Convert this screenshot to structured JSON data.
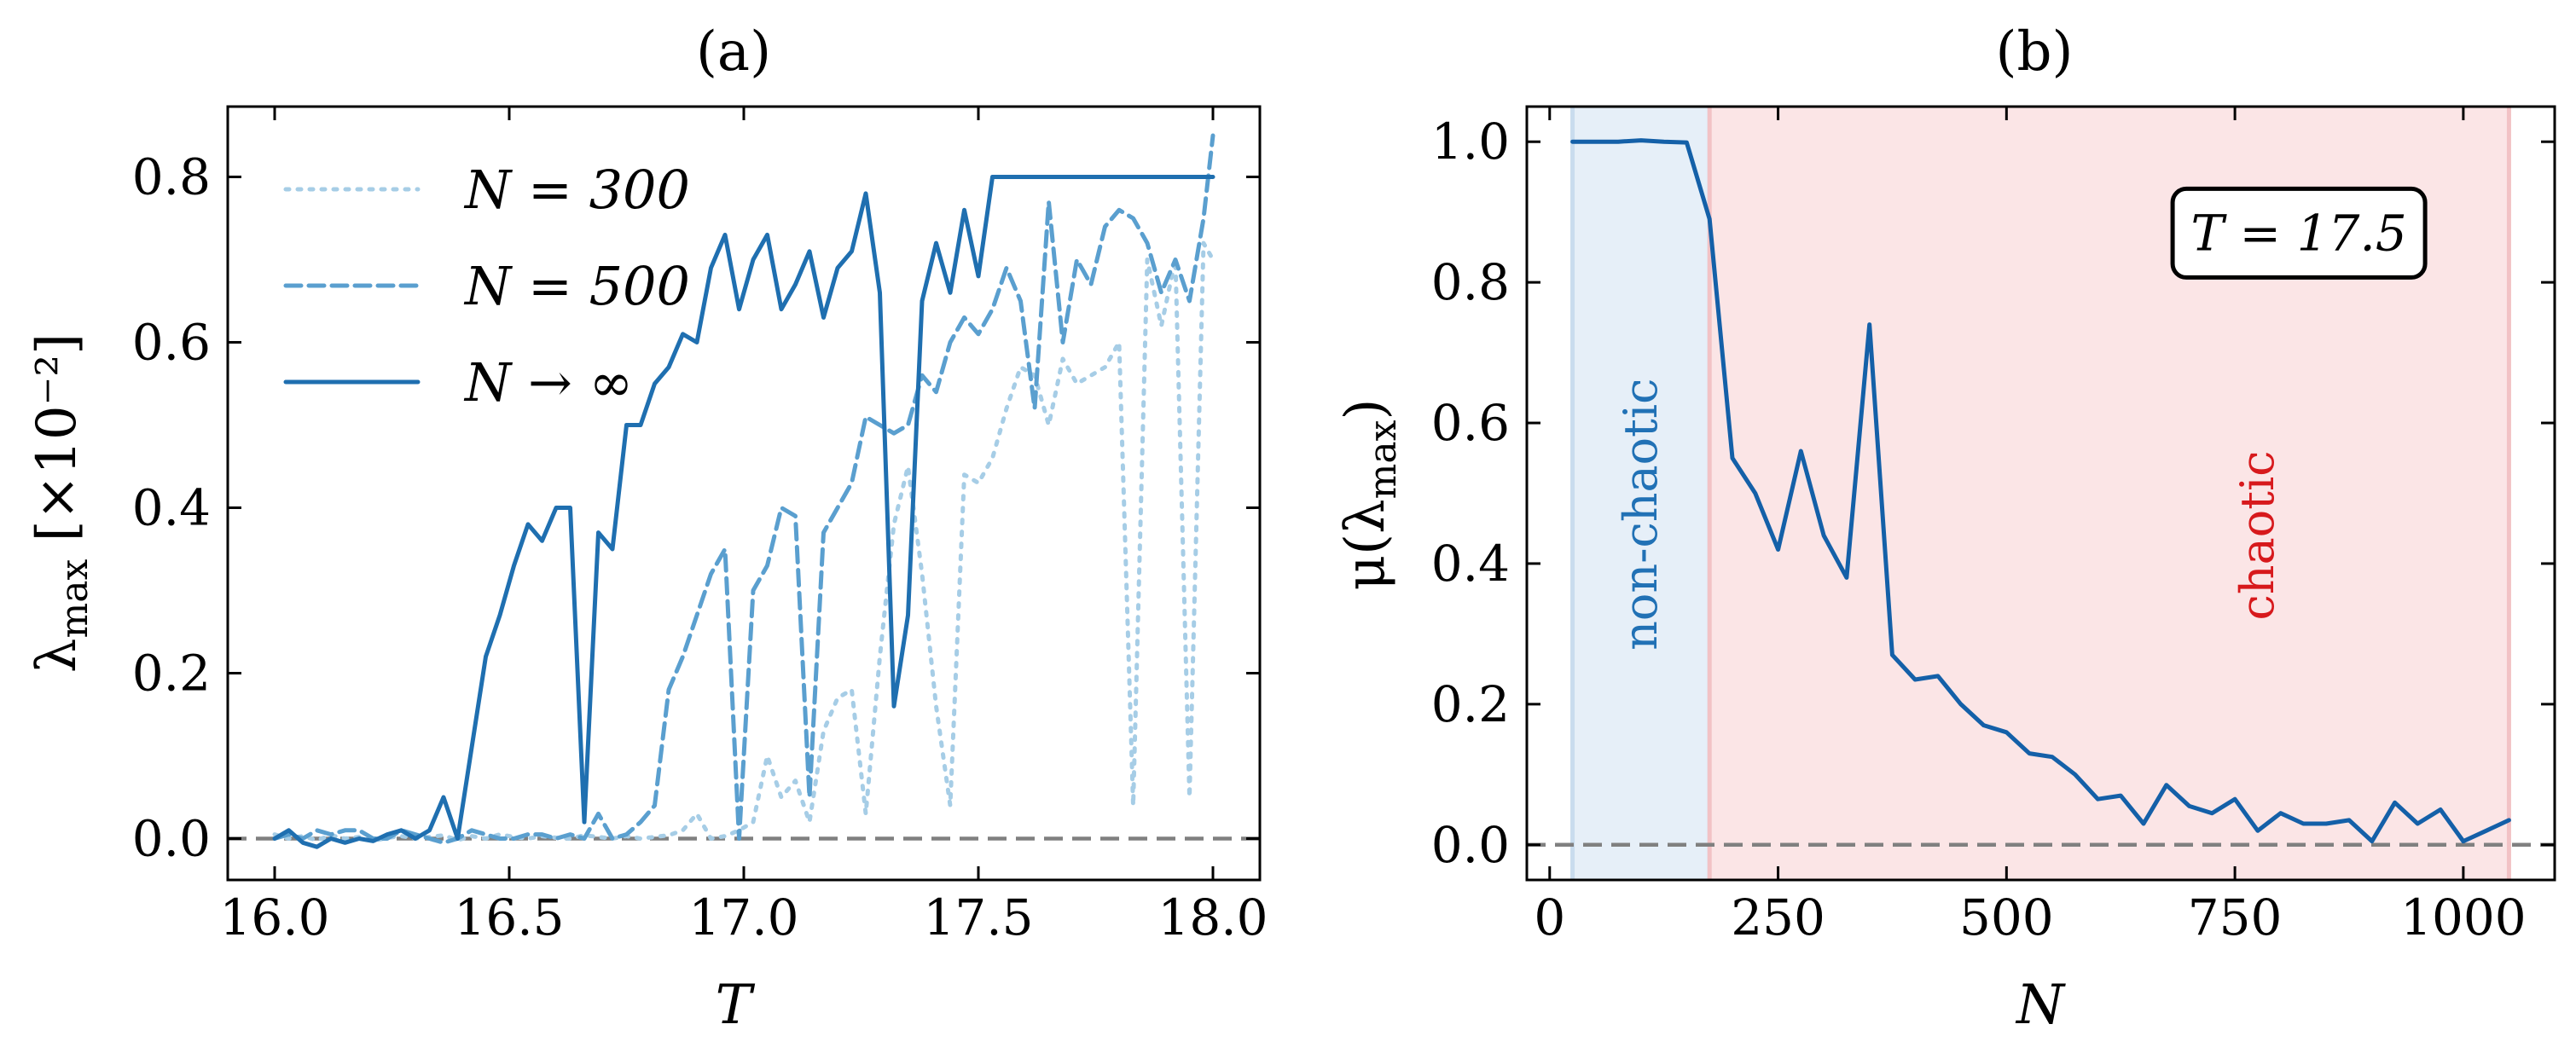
{
  "chart_data": [
    {
      "panel": "(a)",
      "type": "line",
      "xlabel": "T",
      "ylabel_main": "λ",
      "ylabel_sub": "max",
      "ylabel_unit": "[×10⁻²]",
      "xlim": [
        15.9,
        18.1
      ],
      "ylim": [
        -0.05,
        0.885
      ],
      "xticks": [
        16.0,
        16.5,
        17.0,
        17.5,
        18.0
      ],
      "xtick_labels": [
        "16.0",
        "16.5",
        "17.0",
        "17.5",
        "18.0"
      ],
      "yticks": [
        0.0,
        0.2,
        0.4,
        0.6,
        0.8
      ],
      "ytick_labels": [
        "0.0",
        "0.2",
        "0.4",
        "0.6",
        "0.8"
      ],
      "reference_line_y": 0.0,
      "legend_position": "top-left",
      "legend": [
        "N = 300",
        "N = 500",
        "N → ∞"
      ],
      "series": [
        {
          "name": "N = 300",
          "style": "dotted",
          "color": "#a6cde6",
          "x": [
            16.0,
            16.03,
            16.06,
            16.09,
            16.12,
            16.15,
            16.18,
            16.21,
            16.24,
            16.27,
            16.3,
            16.33,
            16.36,
            16.39,
            16.42,
            16.45,
            16.48,
            16.51,
            16.54,
            16.57,
            16.6,
            16.63,
            16.66,
            16.69,
            16.72,
            16.75,
            16.78,
            16.81,
            16.84,
            16.87,
            16.9,
            16.93,
            16.96,
            16.99,
            17.02,
            17.05,
            17.08,
            17.11,
            17.14,
            17.17,
            17.2,
            17.23,
            17.26,
            17.29,
            17.32,
            17.35,
            17.38,
            17.41,
            17.44,
            17.47,
            17.5,
            17.53,
            17.56,
            17.59,
            17.62,
            17.65,
            17.68,
            17.71,
            17.74,
            17.77,
            17.8,
            17.83,
            17.86,
            17.89,
            17.92,
            17.95,
            17.98,
            18.0
          ],
          "y": [
            0.005,
            0.0,
            0.003,
            -0.002,
            0.004,
            0.0,
            0.002,
            -0.003,
            0.001,
            0.003,
            0.0,
            0.002,
            0.004,
            -0.002,
            0.003,
            0.0,
            0.005,
            0.002,
            0.0,
            0.003,
            0.001,
            0.0,
            0.004,
            0.002,
            0.0,
            0.003,
            0.0,
            0.002,
            0.004,
            0.01,
            0.03,
            0.0,
            0.003,
            0.01,
            0.02,
            0.1,
            0.05,
            0.07,
            0.02,
            0.13,
            0.17,
            0.18,
            0.03,
            0.22,
            0.38,
            0.45,
            0.32,
            0.16,
            0.04,
            0.44,
            0.43,
            0.46,
            0.52,
            0.57,
            0.56,
            0.5,
            0.58,
            0.55,
            0.56,
            0.57,
            0.6,
            0.04,
            0.7,
            0.62,
            0.7,
            0.05,
            0.72,
            0.7
          ]
        },
        {
          "name": "N = 500",
          "style": "dashed",
          "color": "#5a9fcf",
          "x": [
            16.0,
            16.03,
            16.06,
            16.09,
            16.12,
            16.15,
            16.18,
            16.21,
            16.24,
            16.27,
            16.3,
            16.33,
            16.36,
            16.39,
            16.42,
            16.45,
            16.48,
            16.51,
            16.54,
            16.57,
            16.6,
            16.63,
            16.66,
            16.69,
            16.72,
            16.75,
            16.78,
            16.81,
            16.84,
            16.87,
            16.9,
            16.93,
            16.96,
            16.99,
            17.02,
            17.05,
            17.08,
            17.11,
            17.14,
            17.17,
            17.2,
            17.23,
            17.26,
            17.29,
            17.32,
            17.35,
            17.38,
            17.41,
            17.44,
            17.47,
            17.5,
            17.53,
            17.56,
            17.59,
            17.62,
            17.65,
            17.68,
            17.71,
            17.74,
            17.77,
            17.8,
            17.83,
            17.86,
            17.89,
            17.92,
            17.95,
            17.98,
            18.0
          ],
          "y": [
            0.0,
            0.005,
            0.0,
            0.01,
            0.005,
            0.01,
            0.01,
            0.0,
            0.0,
            0.01,
            0.005,
            0.0,
            -0.005,
            0.0,
            0.01,
            0.005,
            0.0,
            0.0,
            0.005,
            0.005,
            0.0,
            0.005,
            0.0,
            0.03,
            0.0,
            0.005,
            0.02,
            0.04,
            0.18,
            0.22,
            0.27,
            0.32,
            0.35,
            0.0,
            0.3,
            0.33,
            0.4,
            0.39,
            0.05,
            0.37,
            0.4,
            0.43,
            0.51,
            0.5,
            0.49,
            0.5,
            0.56,
            0.54,
            0.6,
            0.63,
            0.61,
            0.64,
            0.69,
            0.65,
            0.52,
            0.77,
            0.6,
            0.7,
            0.67,
            0.74,
            0.76,
            0.75,
            0.72,
            0.66,
            0.7,
            0.65,
            0.75,
            0.85
          ]
        },
        {
          "name": "N → ∞",
          "style": "solid",
          "color": "#1f6fb0",
          "x": [
            16.0,
            16.03,
            16.06,
            16.09,
            16.12,
            16.15,
            16.18,
            16.21,
            16.24,
            16.27,
            16.3,
            16.33,
            16.36,
            16.39,
            16.42,
            16.45,
            16.48,
            16.51,
            16.54,
            16.57,
            16.6,
            16.63,
            16.66,
            16.69,
            16.72,
            16.75,
            16.78,
            16.81,
            16.84,
            16.87,
            16.9,
            16.93,
            16.96,
            16.99,
            17.02,
            17.05,
            17.08,
            17.11,
            17.14,
            17.17,
            17.2,
            17.23,
            17.26,
            17.29,
            17.32,
            17.35,
            17.38,
            17.41,
            17.44,
            17.47,
            17.5,
            17.53,
            17.56,
            17.59,
            17.62,
            17.65,
            17.68,
            17.71,
            17.74,
            17.77,
            17.8,
            17.83,
            17.86,
            17.89,
            17.92,
            17.95,
            17.98,
            18.0
          ],
          "y": [
            0.0,
            0.01,
            -0.005,
            -0.01,
            0.0,
            -0.005,
            0.0,
            -0.003,
            0.005,
            0.01,
            0.0,
            0.01,
            0.05,
            0.0,
            0.11,
            0.22,
            0.27,
            0.33,
            0.38,
            0.36,
            0.4,
            0.4,
            0.02,
            0.37,
            0.35,
            0.5,
            0.5,
            0.55,
            0.57,
            0.61,
            0.6,
            0.69,
            0.73,
            0.64,
            0.7,
            0.73,
            0.64,
            0.67,
            0.71,
            0.63,
            0.69,
            0.71,
            0.78,
            0.66,
            0.16,
            0.27,
            0.65,
            0.72,
            0.66,
            0.76,
            0.68,
            0.8,
            0.8,
            0.8,
            0.8,
            0.8,
            0.8,
            0.8,
            0.8,
            0.8,
            0.8,
            0.8,
            0.8,
            0.8,
            0.8,
            0.8,
            0.8,
            0.8
          ]
        }
      ]
    },
    {
      "panel": "(b)",
      "type": "line",
      "xlabel": "N",
      "ylabel_prefix": "μ(λ",
      "ylabel_sub": "max",
      "ylabel_suffix": ")",
      "xlim": [
        -25,
        1100
      ],
      "ylim": [
        -0.05,
        1.05
      ],
      "xticks": [
        0,
        250,
        500,
        750,
        1000
      ],
      "xtick_labels": [
        "0",
        "250",
        "500",
        "750",
        "1000"
      ],
      "yticks": [
        0.0,
        0.2,
        0.4,
        0.6,
        0.8,
        1.0
      ],
      "ytick_labels": [
        "0.0",
        "0.2",
        "0.4",
        "0.6",
        "0.8",
        "1.0"
      ],
      "reference_line_y": 0.0,
      "regions": [
        {
          "label": "non-chaotic",
          "x0": 25,
          "x1": 175,
          "fill": "#e6eff8",
          "edge": "#c9dcee",
          "text_color": "#2171b5",
          "label_x": 100,
          "label_y": 0.47
        },
        {
          "label": "chaotic",
          "x0": 175,
          "x1": 1050,
          "fill": "#fbe5e6",
          "edge": "#f2c2c5",
          "text_color": "#d7191c",
          "label_x": 775,
          "label_y": 0.44
        }
      ],
      "annotation": {
        "text": "T = 17.5",
        "x": 820,
        "y": 0.87
      },
      "series": [
        {
          "color": "#1460a8",
          "x": [
            25,
            50,
            75,
            100,
            125,
            150,
            175,
            200,
            225,
            250,
            275,
            300,
            325,
            350,
            375,
            400,
            425,
            450,
            475,
            500,
            525,
            550,
            575,
            600,
            625,
            650,
            675,
            700,
            725,
            750,
            775,
            800,
            825,
            850,
            875,
            900,
            925,
            950,
            975,
            1000,
            1025,
            1050
          ],
          "y": [
            1.0,
            1.0,
            1.0,
            1.002,
            1.0,
            0.999,
            0.89,
            0.55,
            0.5,
            0.42,
            0.56,
            0.44,
            0.38,
            0.74,
            0.27,
            0.235,
            0.24,
            0.2,
            0.17,
            0.16,
            0.13,
            0.125,
            0.1,
            0.065,
            0.07,
            0.03,
            0.085,
            0.055,
            0.045,
            0.065,
            0.02,
            0.045,
            0.03,
            0.03,
            0.035,
            0.005,
            0.06,
            0.03,
            0.05,
            0.005,
            0.02,
            0.035
          ]
        }
      ]
    }
  ]
}
